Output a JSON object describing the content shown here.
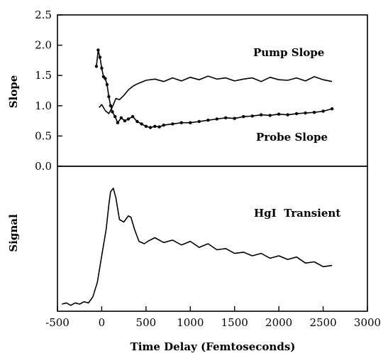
{
  "chart_data": [
    {
      "type": "line",
      "panel": "top",
      "ylabel": "Slope",
      "xlim": [
        -500,
        3000
      ],
      "ylim": [
        0.0,
        2.5
      ],
      "grid": false,
      "yticks": [
        0.0,
        0.5,
        1.0,
        1.5,
        2.0,
        2.5
      ],
      "ytick_labels": [
        "0.0",
        "0.5",
        "1.0",
        "1.5",
        "2.0",
        "2.5"
      ],
      "series": [
        {
          "name": "Pump Slope",
          "marker": "none",
          "x": [
            -30,
            0,
            40,
            80,
            120,
            160,
            200,
            250,
            300,
            350,
            400,
            450,
            500,
            600,
            700,
            800,
            900,
            1000,
            1100,
            1200,
            1300,
            1400,
            1500,
            1600,
            1700,
            1800,
            1900,
            2000,
            2100,
            2200,
            2300,
            2400,
            2500,
            2600
          ],
          "y": [
            0.97,
            1.02,
            0.92,
            0.87,
            0.98,
            1.12,
            1.1,
            1.17,
            1.26,
            1.32,
            1.36,
            1.39,
            1.42,
            1.44,
            1.4,
            1.46,
            1.41,
            1.47,
            1.43,
            1.49,
            1.44,
            1.46,
            1.41,
            1.44,
            1.46,
            1.4,
            1.47,
            1.43,
            1.42,
            1.46,
            1.41,
            1.48,
            1.43,
            1.4
          ]
        },
        {
          "name": "Probe Slope",
          "marker": "dot",
          "x": [
            -60,
            -40,
            -20,
            0,
            20,
            40,
            60,
            80,
            100,
            120,
            150,
            180,
            220,
            260,
            300,
            350,
            400,
            450,
            500,
            550,
            600,
            650,
            700,
            800,
            900,
            1000,
            1100,
            1200,
            1300,
            1400,
            1500,
            1600,
            1700,
            1800,
            1900,
            2000,
            2100,
            2200,
            2300,
            2400,
            2500,
            2600
          ],
          "y": [
            1.65,
            1.92,
            1.8,
            1.62,
            1.48,
            1.45,
            1.35,
            1.15,
            1.0,
            0.9,
            0.82,
            0.72,
            0.8,
            0.75,
            0.78,
            0.82,
            0.74,
            0.7,
            0.66,
            0.64,
            0.66,
            0.65,
            0.68,
            0.7,
            0.72,
            0.72,
            0.74,
            0.76,
            0.78,
            0.8,
            0.79,
            0.82,
            0.83,
            0.85,
            0.84,
            0.86,
            0.85,
            0.87,
            0.88,
            0.89,
            0.91,
            0.95
          ]
        }
      ],
      "annotations": [
        "Pump Slope",
        "Probe Slope"
      ]
    },
    {
      "type": "line",
      "panel": "bottom",
      "ylabel": "Signal",
      "xlabel": "Time Delay (Femtoseconds)",
      "xlim": [
        -500,
        3000
      ],
      "ylim": [
        0.0,
        1.0
      ],
      "grid": false,
      "xticks": [
        -500,
        0,
        500,
        1000,
        1500,
        2000,
        2500,
        3000
      ],
      "xtick_labels": [
        "-500",
        "0",
        "500",
        "1000",
        "1500",
        "2000",
        "2500",
        "3000"
      ],
      "series": [
        {
          "name": "HgI Transient",
          "marker": "none",
          "x": [
            -450,
            -400,
            -350,
            -300,
            -250,
            -200,
            -150,
            -100,
            -50,
            0,
            50,
            80,
            100,
            130,
            160,
            200,
            250,
            300,
            330,
            370,
            420,
            480,
            520,
            600,
            700,
            800,
            900,
            1000,
            1100,
            1200,
            1300,
            1400,
            1500,
            1600,
            1700,
            1800,
            1900,
            2000,
            2100,
            2200,
            2300,
            2400,
            2500,
            2600
          ],
          "y": [
            0.0,
            0.01,
            -0.01,
            0.01,
            0.0,
            0.02,
            0.01,
            0.06,
            0.18,
            0.4,
            0.62,
            0.82,
            0.93,
            0.96,
            0.88,
            0.7,
            0.68,
            0.73,
            0.72,
            0.62,
            0.52,
            0.5,
            0.52,
            0.55,
            0.51,
            0.53,
            0.49,
            0.52,
            0.47,
            0.5,
            0.45,
            0.46,
            0.42,
            0.43,
            0.4,
            0.42,
            0.38,
            0.4,
            0.37,
            0.39,
            0.34,
            0.35,
            0.31,
            0.32
          ]
        }
      ],
      "annotations": [
        "HgI  Transient"
      ]
    }
  ]
}
